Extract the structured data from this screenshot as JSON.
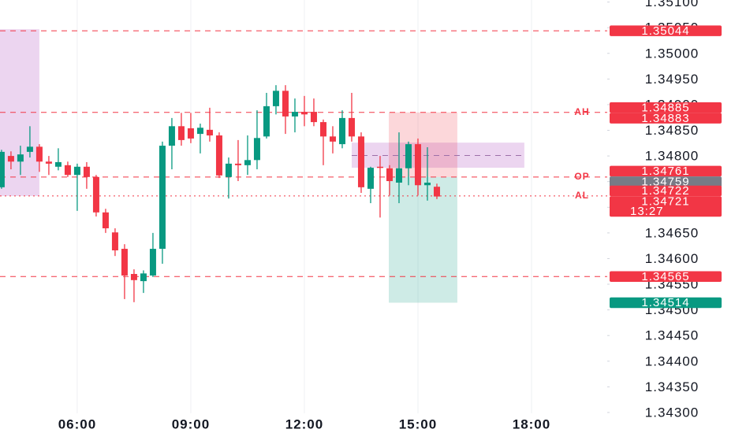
{
  "chart_data": {
    "type": "candlestick",
    "x": [
      4,
      4.25,
      4.5,
      4.75,
      5,
      5.25,
      5.5,
      5.75,
      6,
      6.25,
      6.5,
      6.75,
      7,
      7.25,
      7.5,
      7.75,
      8,
      8.25,
      8.5,
      8.75,
      9,
      9.25,
      9.5,
      9.75,
      10,
      10.25,
      10.5,
      10.75,
      11,
      11.25,
      11.5,
      11.75,
      12,
      12.25,
      12.5,
      12.75,
      13,
      13.25,
      13.5,
      13.75,
      14,
      14.25,
      14.5,
      14.75,
      15,
      15.25,
      15.5
    ],
    "open": [
      1.34739,
      1.348,
      1.34789,
      1.34808,
      1.34818,
      1.34789,
      1.34779,
      1.34782,
      1.34763,
      1.34779,
      1.34759,
      1.3469,
      1.34651,
      1.34619,
      1.3457,
      1.34556,
      1.34567,
      1.34619,
      1.3482,
      1.34858,
      1.34854,
      1.34843,
      1.34851,
      1.3484,
      1.34759,
      1.34785,
      1.34782,
      1.34792,
      1.34838,
      1.34897,
      1.34927,
      1.34877,
      1.34886,
      1.34886,
      1.34866,
      1.34838,
      1.34823,
      1.34874,
      1.34838,
      1.34736,
      1.34779,
      1.34776,
      1.34748,
      1.34776,
      1.34823,
      1.34743,
      1.3474
    ],
    "high": [
      1.34812,
      1.34809,
      1.3482,
      1.34858,
      1.34823,
      1.348,
      1.34815,
      1.34789,
      1.34785,
      1.34788,
      1.34763,
      1.34697,
      1.34659,
      1.34628,
      1.34579,
      1.34577,
      1.3465,
      1.34828,
      1.34874,
      1.34884,
      1.34884,
      1.34863,
      1.34894,
      1.34846,
      1.34797,
      1.34831,
      1.3484,
      1.34889,
      1.34923,
      1.34938,
      1.34938,
      1.34912,
      1.34917,
      1.34912,
      1.34871,
      1.34858,
      1.34889,
      1.34923,
      1.34846,
      1.34779,
      1.348,
      1.34782,
      1.34846,
      1.34828,
      1.34834,
      1.34817,
      1.34746
    ],
    "low": [
      1.34736,
      1.34774,
      1.34763,
      1.34797,
      1.34769,
      1.34763,
      1.34772,
      1.34759,
      1.34693,
      1.34736,
      1.34682,
      1.3465,
      1.34605,
      1.34521,
      1.34515,
      1.34533,
      1.34564,
      1.3459,
      1.34774,
      1.3482,
      1.34825,
      1.34805,
      1.34828,
      1.34757,
      1.34717,
      1.34751,
      1.34763,
      1.34774,
      1.34834,
      1.34881,
      1.34843,
      1.34846,
      1.34858,
      1.34858,
      1.34782,
      1.34805,
      1.34815,
      1.34828,
      1.34728,
      1.34708,
      1.3468,
      1.34723,
      1.34708,
      1.34743,
      1.34723,
      1.34713,
      1.34716
    ],
    "close": [
      1.34808,
      1.34789,
      1.34803,
      1.34818,
      1.34789,
      1.34785,
      1.34788,
      1.34763,
      1.34779,
      1.34759,
      1.3469,
      1.34659,
      1.34616,
      1.34567,
      1.34558,
      1.34571,
      1.34619,
      1.3482,
      1.34858,
      1.34831,
      1.34834,
      1.34855,
      1.3484,
      1.34762,
      1.34785,
      1.34782,
      1.34792,
      1.34835,
      1.34897,
      1.34927,
      1.34877,
      1.34886,
      1.34881,
      1.34866,
      1.34838,
      1.34828,
      1.34874,
      1.34838,
      1.34739,
      1.34777,
      1.34777,
      1.34751,
      1.34776,
      1.34823,
      1.34743,
      1.34748,
      1.34721
    ],
    "up_color": "#089981",
    "down_color": "#f23645",
    "xlim": [
      3.96,
      20
    ],
    "xticks": [
      {
        "value": 6,
        "label": "06:00"
      },
      {
        "value": 9,
        "label": "09:00"
      },
      {
        "value": 12,
        "label": "12:00"
      },
      {
        "value": 15,
        "label": "15:00"
      },
      {
        "value": 18,
        "label": "18:00"
      }
    ],
    "ylim": [
      1.3426,
      1.35104
    ],
    "yticks": [
      {
        "value": 1.343,
        "label": "1.34300"
      },
      {
        "value": 1.3435,
        "label": "1.34350"
      },
      {
        "value": 1.344,
        "label": "1.34400"
      },
      {
        "value": 1.3445,
        "label": "1.34450"
      },
      {
        "value": 1.345,
        "label": "1.34500"
      },
      {
        "value": 1.3455,
        "label": "1.34550"
      },
      {
        "value": 1.346,
        "label": "1.34600"
      },
      {
        "value": 1.3465,
        "label": "1.34650"
      },
      {
        "value": 1.347,
        "label": "1.34700"
      },
      {
        "value": 1.3475,
        "label": "1.34750"
      },
      {
        "value": 1.348,
        "label": "1.34800"
      },
      {
        "value": 1.3485,
        "label": "1.34850"
      },
      {
        "value": 1.349,
        "label": "1.34900"
      },
      {
        "value": 1.3495,
        "label": "1.34950"
      },
      {
        "value": 1.35,
        "label": "1.35000"
      },
      {
        "value": 1.3505,
        "label": "1.35050"
      },
      {
        "value": 1.351,
        "label": "1.35100"
      }
    ],
    "grid": true,
    "zones": [
      {
        "x": [
          3.96,
          5.0
        ],
        "y": [
          1.34722,
          1.35047
        ],
        "color": "rgba(186,104,200,0.28)"
      },
      {
        "x": [
          13.25,
          17.81
        ],
        "y": [
          1.34777,
          1.34826
        ],
        "color": "rgba(186,104,200,0.28)"
      },
      {
        "x": [
          14.23,
          16.04
        ],
        "y": [
          1.34759,
          1.34885
        ],
        "color": "rgba(242,54,69,0.2)"
      },
      {
        "x": [
          14.23,
          16.04
        ],
        "y": [
          1.34514,
          1.34759
        ],
        "color": "rgba(8,153,129,0.2)"
      }
    ],
    "levels": [
      {
        "value": 1.35044,
        "color": "#f23645",
        "style": "dashed"
      },
      {
        "value": 1.34885,
        "color": "#f23645",
        "style": "dashed",
        "marker": "AH"
      },
      {
        "value": 1.34759,
        "color": "#f23645",
        "style": "dashed",
        "marker": "OP"
      },
      {
        "value": 1.34722,
        "color": "#f23645",
        "style": "dotted",
        "marker": "AL"
      },
      {
        "value": 1.34565,
        "color": "#f23645",
        "style": "dashed"
      },
      {
        "value": 1.34801,
        "color": "#9c6fa8",
        "style": "dashed",
        "from": 13.25,
        "to": 17.81
      }
    ],
    "price_labels": [
      {
        "value": 1.35044,
        "color": "#f23645"
      },
      {
        "value": 1.34885,
        "color": "#f23645"
      },
      {
        "value": 1.34883,
        "color": "#f23645"
      },
      {
        "value": 1.34761,
        "color": "#f23645"
      },
      {
        "value": 1.34759,
        "color": "#787b86"
      },
      {
        "value": 1.34722,
        "color": "#f23645"
      },
      {
        "value": 1.34721,
        "color": "#f23645",
        "countdown": "13:27"
      },
      {
        "value": 1.34565,
        "color": "#f23645"
      },
      {
        "value": 1.34514,
        "color": "#089981"
      }
    ]
  }
}
